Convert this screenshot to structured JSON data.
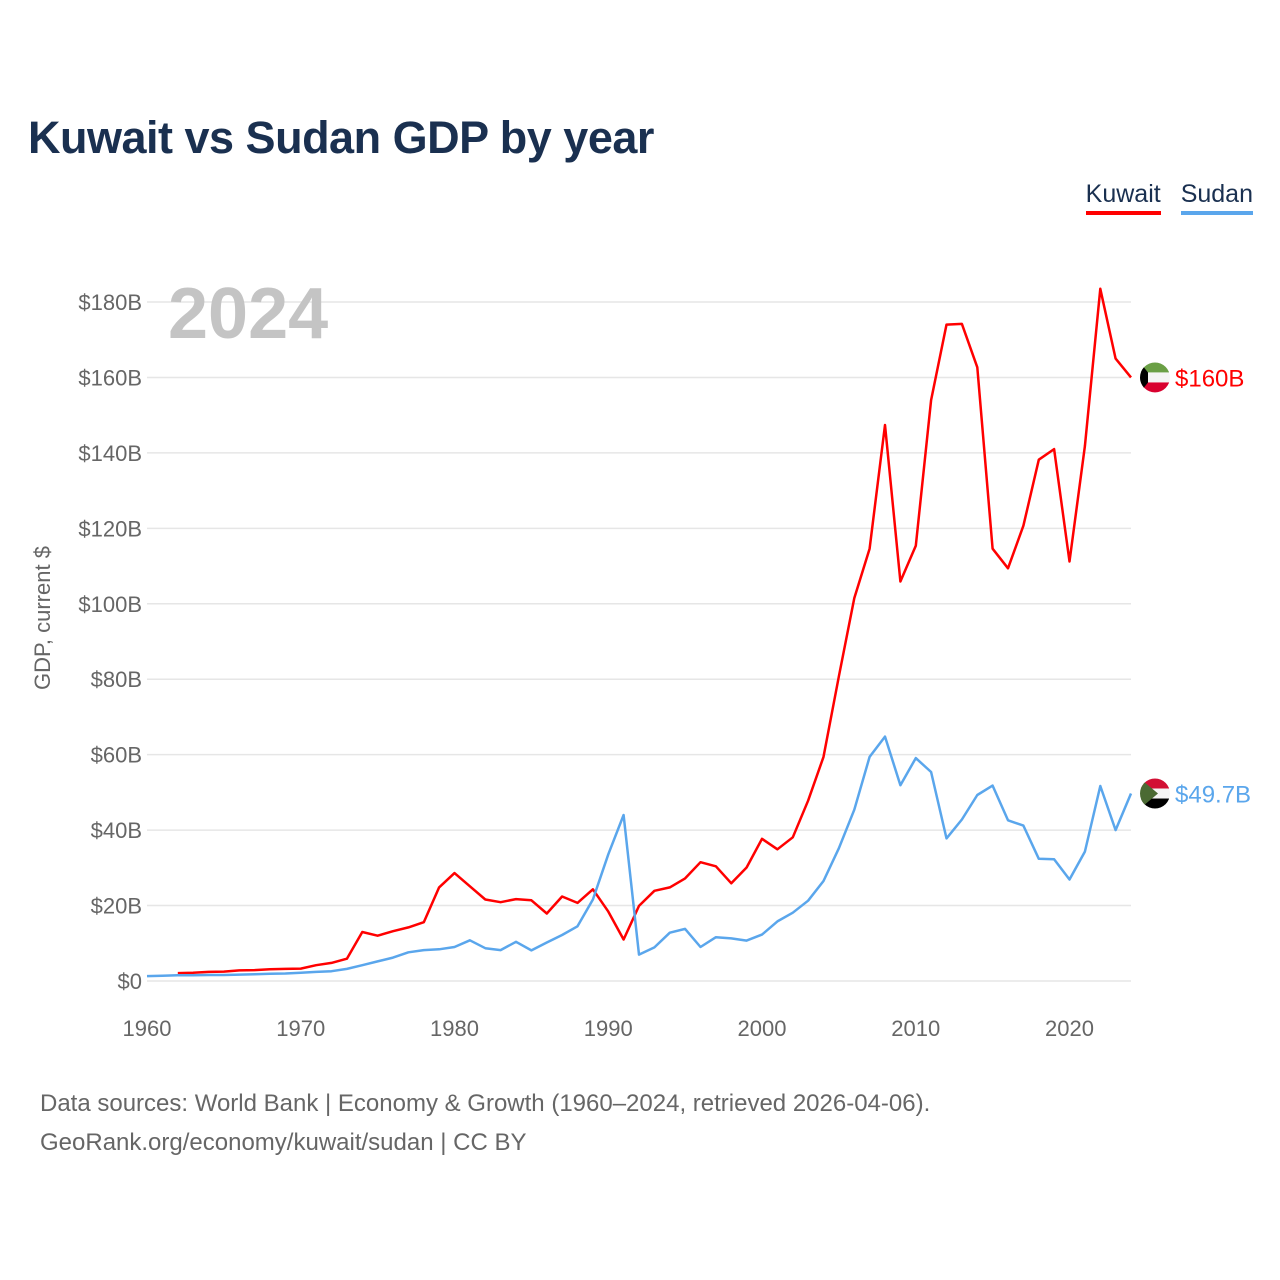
{
  "title": "Kuwait vs Sudan GDP by year",
  "legend": {
    "kuwait": "Kuwait",
    "sudan": "Sudan"
  },
  "year_watermark": "2024",
  "source_line1": "Data sources: World Bank | Economy & Growth (1960–2024, retrieved 2026-04-06).",
  "source_line2": "GeoRank.org/economy/kuwait/sudan | CC BY",
  "colors": {
    "kuwait": "#ff0000",
    "sudan": "#5aa6ec",
    "title": "#1a3050"
  },
  "chart_data": {
    "type": "line",
    "title": "Kuwait vs Sudan GDP by year",
    "xlabel": "",
    "ylabel": "GDP, current $",
    "xlim": [
      1960,
      2024
    ],
    "ylim": [
      0,
      180
    ],
    "xticks": [
      1960,
      1970,
      1980,
      1990,
      2000,
      2010,
      2020
    ],
    "yticks": [
      0,
      20,
      40,
      60,
      80,
      100,
      120,
      140,
      160,
      180
    ],
    "ytick_labels": [
      "$0",
      "$20B",
      "$40B",
      "$60B",
      "$80B",
      "$100B",
      "$120B",
      "$140B",
      "$160B",
      "$180B"
    ],
    "grid": true,
    "legend_position": "top-right",
    "series": [
      {
        "name": "Kuwait",
        "start_year": 1962,
        "end_label": "$160B",
        "values": [
          2.1,
          2.2,
          2.4,
          2.5,
          2.8,
          2.9,
          3.1,
          3.2,
          3.3,
          4.2,
          4.8,
          5.9,
          13.0,
          12.0,
          13.2,
          14.2,
          15.6,
          24.8,
          28.6,
          25.1,
          21.6,
          20.9,
          21.7,
          21.4,
          17.9,
          22.4,
          20.7,
          24.3,
          18.4,
          11.0,
          19.9,
          23.9,
          24.8,
          27.2,
          31.5,
          30.4,
          25.9,
          30.1,
          37.7,
          34.9,
          38.1,
          47.8,
          59.4,
          80.8,
          101.5,
          114.6,
          147.4,
          105.9,
          115.4,
          154.0,
          174.0,
          174.2,
          162.7,
          114.6,
          109.4,
          120.7,
          138.2,
          141.0,
          111.2,
          141.8,
          183.5,
          165.0,
          160.0
        ]
      },
      {
        "name": "Sudan",
        "start_year": 1960,
        "end_label": "$49.7B",
        "values": [
          1.3,
          1.4,
          1.5,
          1.5,
          1.6,
          1.6,
          1.7,
          1.8,
          1.9,
          2.0,
          2.2,
          2.4,
          2.6,
          3.2,
          4.2,
          5.2,
          6.2,
          7.6,
          8.2,
          8.4,
          9.0,
          10.8,
          8.7,
          8.2,
          10.4,
          8.1,
          10.2,
          12.2,
          14.5,
          21.6,
          33.6,
          44.0,
          7.0,
          8.9,
          12.8,
          13.8,
          9.0,
          11.6,
          11.3,
          10.7,
          12.3,
          15.8,
          18.1,
          21.3,
          26.5,
          35.2,
          45.4,
          59.4,
          64.8,
          51.9,
          59.1,
          55.4,
          37.8,
          42.8,
          49.3,
          51.8,
          42.6,
          41.2,
          32.4,
          32.3,
          26.9,
          34.3,
          51.7,
          40.0,
          49.7
        ]
      }
    ]
  }
}
